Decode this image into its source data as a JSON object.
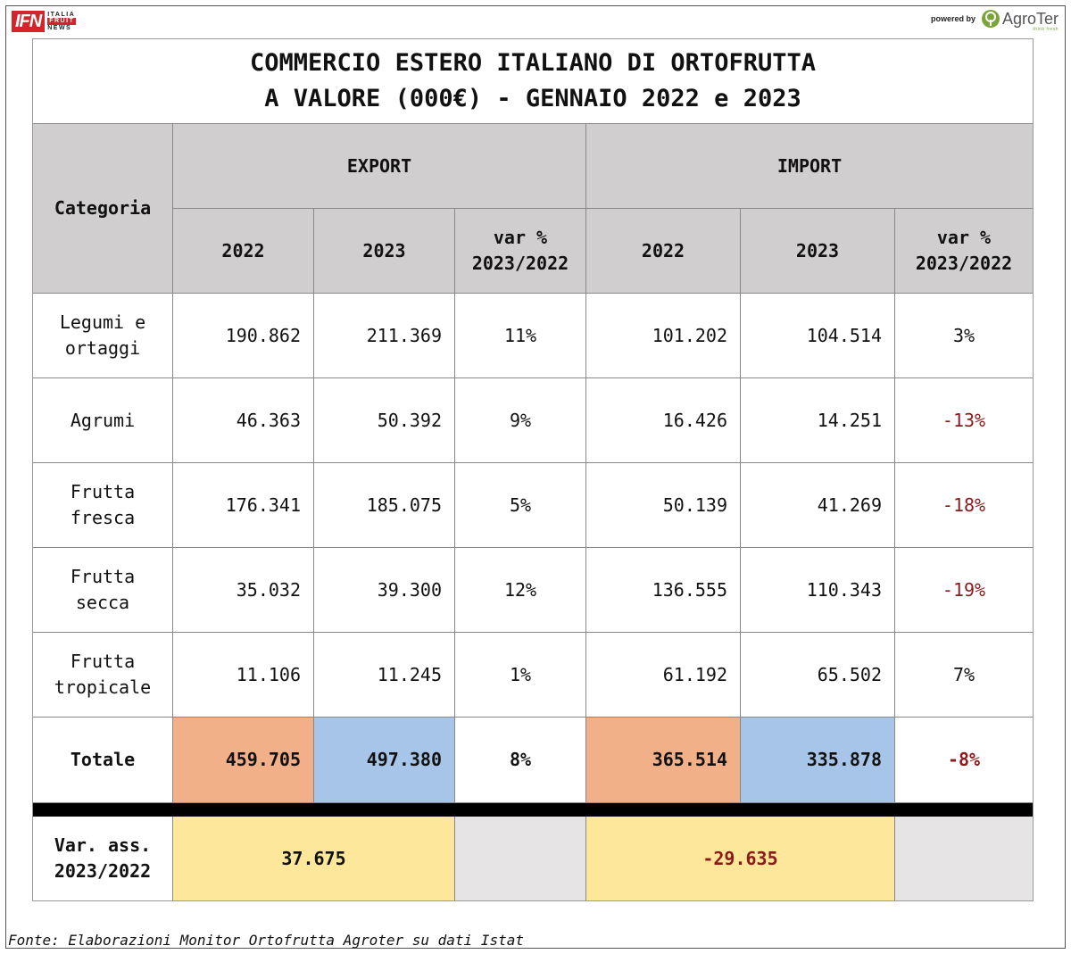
{
  "header": {
    "ifn_mark": "IFN",
    "ifn_words": [
      "ITALIA",
      "FRUIT",
      "NEWS"
    ],
    "powered_by": "powered by",
    "agroter": "AgroTer",
    "agroter_tag": "think fresh"
  },
  "title": {
    "line1": "COMMERCIO ESTERO ITALIANO DI ORTOFRUTTA",
    "line2": "A VALORE (000€) - GENNAIO 2022 e 2023"
  },
  "table": {
    "category_header": "Categoria",
    "export_header": "EXPORT",
    "import_header": "IMPORT",
    "col_2022": "2022",
    "col_2023": "2023",
    "var_line1": "var %",
    "var_line2": "2023/2022",
    "rows": [
      {
        "cat1": "Legumi e",
        "cat2": "ortaggi",
        "e22": "190.862",
        "e23": "211.369",
        "ev": "11%",
        "i22": "101.202",
        "i23": "104.514",
        "iv": "3%"
      },
      {
        "cat1": "Agrumi",
        "cat2": "",
        "e22": "46.363",
        "e23": "50.392",
        "ev": "9%",
        "i22": "16.426",
        "i23": "14.251",
        "iv": "-13%"
      },
      {
        "cat1": "Frutta",
        "cat2": "fresca",
        "e22": "176.341",
        "e23": "185.075",
        "ev": "5%",
        "i22": "50.139",
        "i23": "41.269",
        "iv": "-18%"
      },
      {
        "cat1": "Frutta",
        "cat2": "secca",
        "e22": "35.032",
        "e23": "39.300",
        "ev": "12%",
        "i22": "136.555",
        "i23": "110.343",
        "iv": "-19%"
      },
      {
        "cat1": "Frutta",
        "cat2": "tropicale",
        "e22": "11.106",
        "e23": "11.245",
        "ev": "1%",
        "i22": "61.192",
        "i23": "65.502",
        "iv": "7%"
      }
    ],
    "total": {
      "label": "Totale",
      "e22": "459.705",
      "e23": "497.380",
      "ev": "8%",
      "i22": "365.514",
      "i23": "335.878",
      "iv": "-8%"
    },
    "var_ass": {
      "label1": "Var. ass.",
      "label2": "2023/2022",
      "export": "37.675",
      "import": "-29.635"
    },
    "colors": {
      "header_bg": "#d0cecf",
      "orange": "#f2b089",
      "blue": "#a6c5e8",
      "yellow": "#fde79b",
      "negative": "#8b1a1a"
    }
  },
  "source": "Fonte: Elaborazioni Monitor Ortofrutta Agroter su dati Istat"
}
